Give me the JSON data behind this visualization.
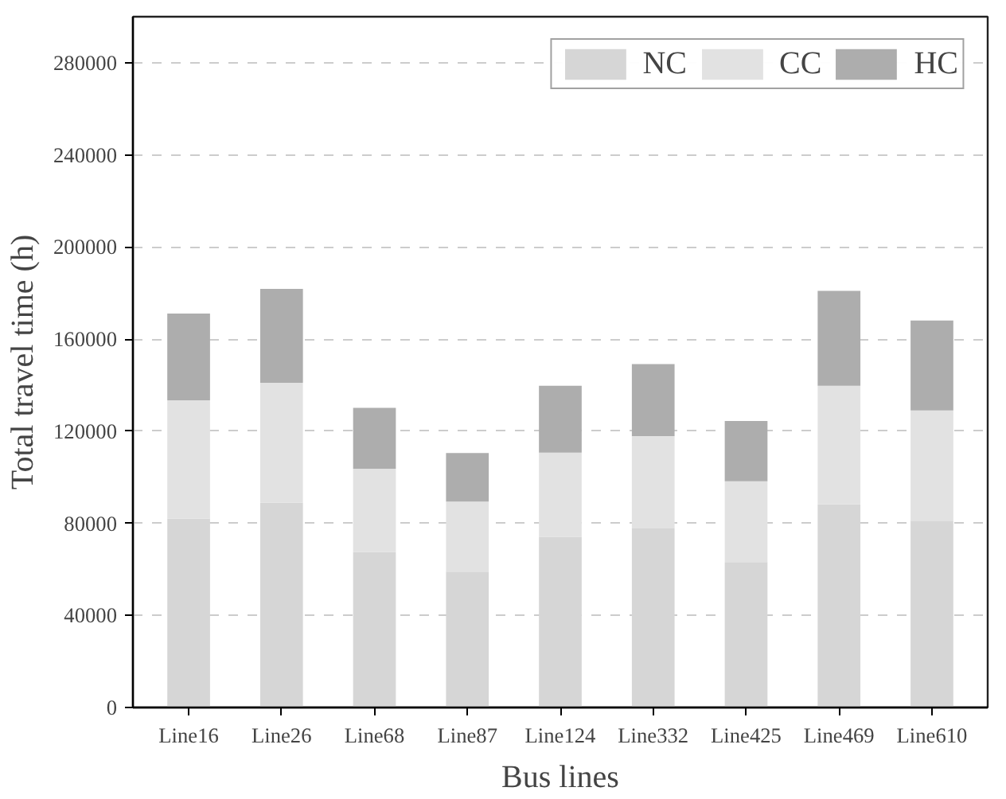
{
  "chart_data": {
    "type": "bar",
    "stacked": true,
    "xlabel": "Bus lines",
    "ylabel": "Total travel time (h)",
    "categories": [
      "Line16",
      "Line26",
      "Line68",
      "Line87",
      "Line124",
      "Line332",
      "Line425",
      "Line469",
      "Line610"
    ],
    "series": [
      {
        "name": "NC",
        "color": "#d6d6d6",
        "values": [
          82000,
          88900,
          67600,
          59000,
          74100,
          77800,
          63200,
          88200,
          81100
        ]
      },
      {
        "name": "CC",
        "color": "#e2e2e2",
        "values": [
          51400,
          52100,
          36100,
          30400,
          36600,
          40100,
          35000,
          51500,
          47900
        ]
      },
      {
        "name": "HC",
        "color": "#adadad",
        "values": [
          37700,
          40800,
          26400,
          21100,
          29000,
          31200,
          26200,
          41200,
          39100
        ]
      }
    ],
    "ylim": [
      0,
      300000
    ],
    "yticks": [
      0,
      40000,
      80000,
      120000,
      160000,
      200000,
      240000,
      280000
    ],
    "grid": "y",
    "legend": "top right"
  }
}
